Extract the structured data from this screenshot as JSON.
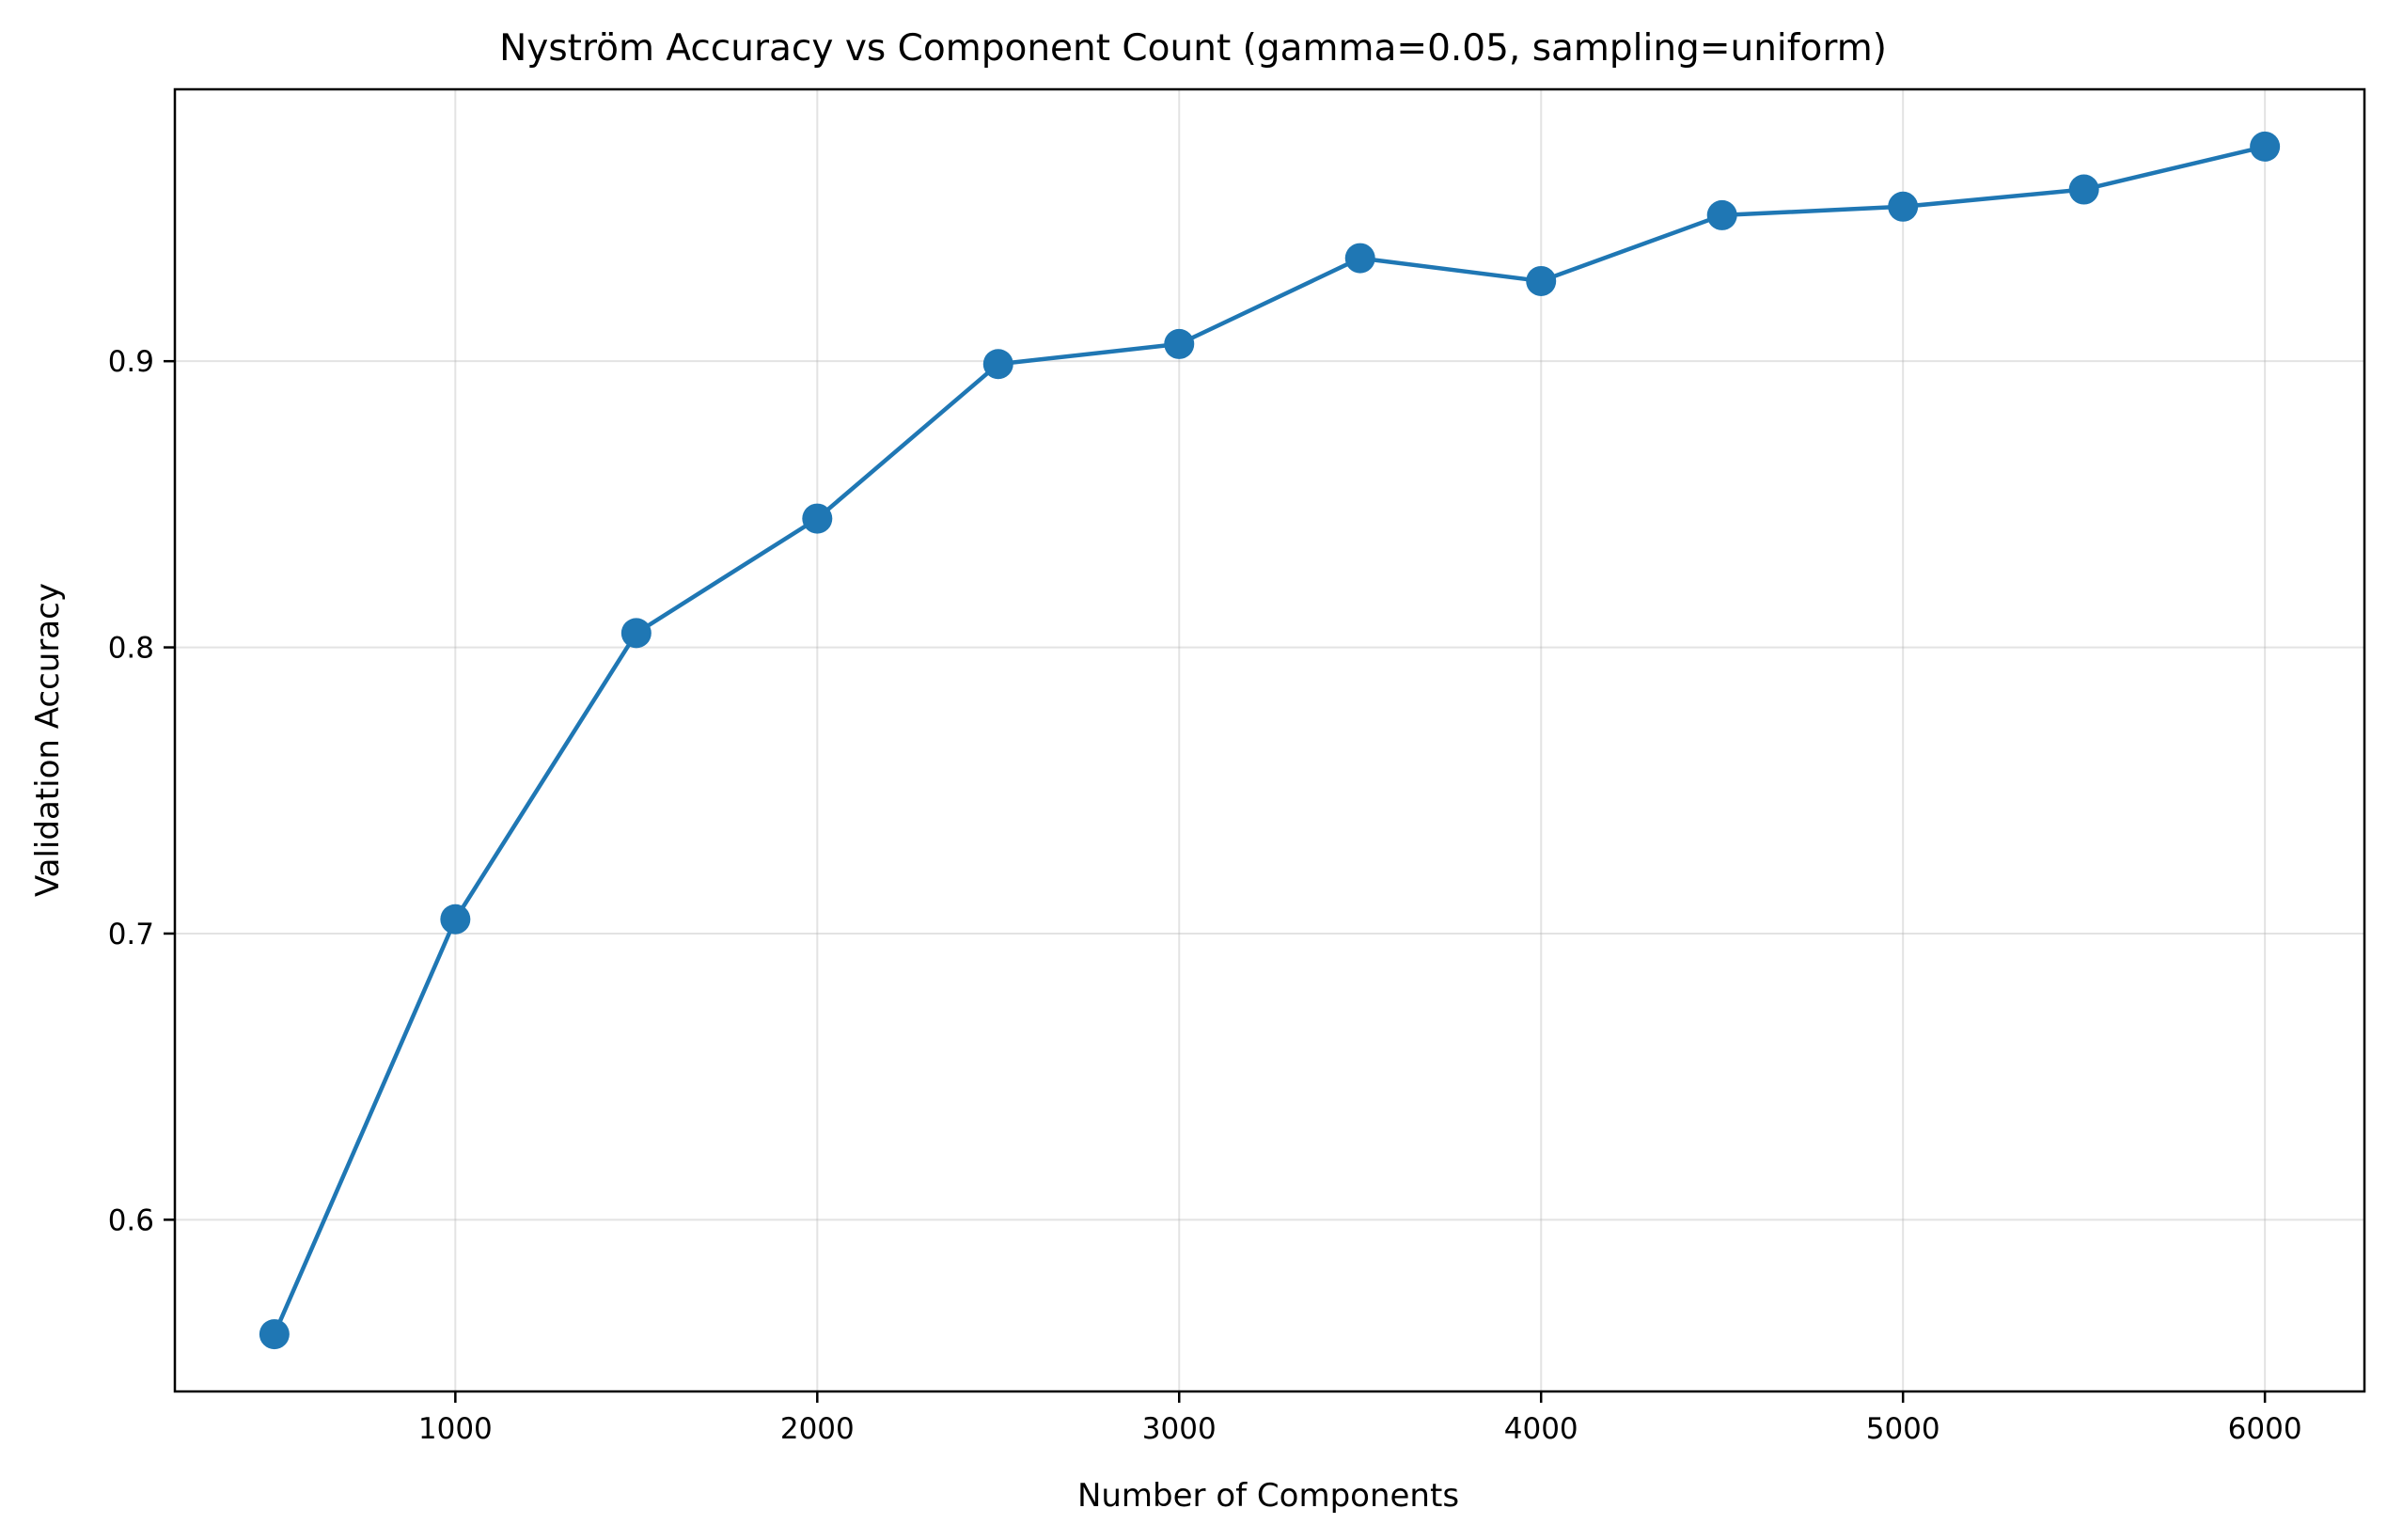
{
  "chart_data": {
    "type": "line",
    "title": "Nyström Accuracy vs Component Count (gamma=0.05, sampling=uniform)",
    "xlabel": "Number of Components",
    "ylabel": "Validation Accuracy",
    "x": [
      500,
      1000,
      1500,
      2000,
      2500,
      3000,
      3500,
      4000,
      4500,
      5000,
      5500,
      6000
    ],
    "series": [
      {
        "values": [
          0.56,
          0.705,
          0.805,
          0.845,
          0.899,
          0.906,
          0.936,
          0.928,
          0.951,
          0.954,
          0.96,
          0.975
        ],
        "color": "#1f77b4",
        "marker": "circle"
      }
    ],
    "xlim": [
      225,
      6275
    ],
    "ylim": [
      0.54,
      0.995
    ],
    "xticks": [
      1000,
      2000,
      3000,
      4000,
      5000,
      6000
    ],
    "xtick_labels": [
      "1000",
      "2000",
      "3000",
      "4000",
      "5000",
      "6000"
    ],
    "yticks": [
      0.6,
      0.7,
      0.8,
      0.9
    ],
    "ytick_labels": [
      "0.6",
      "0.7",
      "0.8",
      "0.9"
    ],
    "grid": true,
    "legend": "none"
  }
}
